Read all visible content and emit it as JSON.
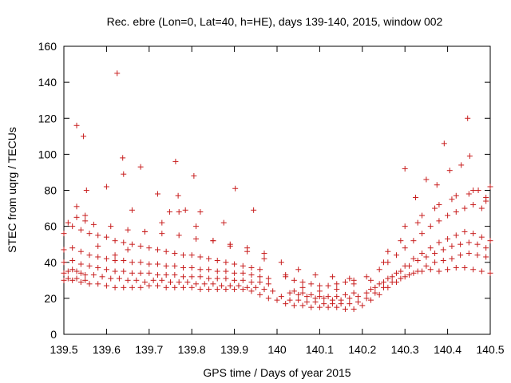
{
  "chart_data": {
    "type": "scatter",
    "title": "Rec. ebre (Lon=0, Lat=40, h=HE), days 139-140, 2015, window 002",
    "xlabel": "GPS time / Days of year 2015",
    "ylabel": "STEC from uqrg / TECUs",
    "xlim": [
      139.5,
      140.5
    ],
    "ylim": [
      0,
      160
    ],
    "xticks": [
      "139.5",
      "139.6",
      "139.7",
      "139.8",
      "139.9",
      "140",
      "140.1",
      "140.2",
      "140.3",
      "140.4",
      "140.5"
    ],
    "yticks": [
      "0",
      "20",
      "40",
      "60",
      "80",
      "100",
      "120",
      "140",
      "160"
    ],
    "grid": false,
    "marker": "+",
    "marker_color": "#c81e1e",
    "series": [
      {
        "x": [
          139.5,
          139.51,
          139.52,
          139.53,
          139.54,
          139.55,
          139.56,
          139.58,
          139.6,
          139.62,
          139.64,
          139.66,
          139.68,
          139.7,
          139.72,
          139.74,
          139.76,
          139.78,
          139.8,
          139.82,
          139.84,
          139.86,
          139.88,
          139.9,
          139.92,
          139.94,
          139.96,
          139.98,
          140,
          140.02,
          140.04,
          140.06,
          140.08,
          140.1,
          140.12,
          140.14,
          140.16,
          140.18,
          140.2,
          140.22,
          140.24,
          140.26,
          140.28,
          140.3,
          140.32,
          140.34,
          140.36,
          140.38,
          140.4,
          140.42,
          140.44,
          140.46,
          140.48,
          140.5
        ],
        "y": [
          30,
          31,
          30,
          31,
          29,
          30,
          28,
          28,
          27,
          26,
          26,
          26,
          26,
          27,
          27,
          26,
          26,
          26,
          26,
          25,
          25,
          25,
          25,
          25,
          25,
          24,
          22,
          20,
          19,
          17,
          16,
          16,
          15,
          15,
          15,
          15,
          14,
          14,
          16,
          19,
          22,
          26,
          29,
          32,
          34,
          35,
          36,
          35,
          36,
          37,
          37,
          36,
          35,
          34
        ]
      },
      {
        "x": [
          139.5,
          139.51,
          139.52,
          139.53,
          139.54,
          139.55,
          139.57,
          139.59,
          139.61,
          139.63,
          139.65,
          139.67,
          139.69,
          139.71,
          139.73,
          139.75,
          139.77,
          139.79,
          139.81,
          139.83,
          139.85,
          139.87,
          139.89,
          139.91,
          139.93,
          139.95,
          139.97,
          139.99,
          140.01,
          140.03,
          140.05,
          140.07,
          140.09,
          140.11,
          140.13,
          140.15,
          140.17,
          140.19,
          140.21,
          140.23,
          140.25,
          140.27,
          140.29,
          140.31,
          140.33,
          140.35,
          140.37,
          140.39,
          140.41,
          140.43,
          140.45,
          140.47,
          140.49
        ],
        "y": [
          34,
          35,
          36,
          35,
          34,
          33,
          33,
          32,
          31,
          31,
          30,
          30,
          29,
          30,
          30,
          29,
          29,
          29,
          28,
          28,
          28,
          27,
          27,
          27,
          26,
          26,
          25,
          24,
          21,
          19,
          19,
          18,
          18,
          17,
          17,
          17,
          17,
          18,
          20,
          23,
          26,
          29,
          31,
          33,
          35,
          38,
          40,
          41,
          42,
          44,
          45,
          44,
          43
        ]
      },
      {
        "x": [
          139.5,
          139.52,
          139.54,
          139.56,
          139.58,
          139.6,
          139.62,
          139.64,
          139.66,
          139.68,
          139.7,
          139.72,
          139.74,
          139.76,
          139.78,
          139.8,
          139.82,
          139.84,
          139.86,
          139.88,
          139.9,
          139.92,
          139.94,
          139.96,
          139.98,
          140.03,
          140.05,
          140.07,
          140.09,
          140.11,
          140.13,
          140.15,
          140.17,
          140.19,
          140.21,
          140.23,
          140.25,
          140.27,
          140.29,
          140.31,
          140.33,
          140.35,
          140.37,
          140.39,
          140.41,
          140.43,
          140.45,
          140.47,
          140.49
        ],
        "y": [
          40,
          41,
          39,
          38,
          37,
          36,
          35,
          35,
          34,
          34,
          34,
          33,
          33,
          33,
          32,
          32,
          32,
          31,
          31,
          31,
          30,
          30,
          29,
          29,
          28,
          23,
          22,
          21,
          20,
          20,
          19,
          19,
          20,
          21,
          23,
          26,
          29,
          32,
          35,
          38,
          41,
          43,
          45,
          47,
          49,
          50,
          51,
          50,
          48
        ]
      },
      {
        "x": [
          139.5,
          139.52,
          139.54,
          139.56,
          139.58,
          139.6,
          139.62,
          139.64,
          139.66,
          139.68,
          139.7,
          139.72,
          139.74,
          139.76,
          139.78,
          139.8,
          139.82,
          139.84,
          139.86,
          139.88,
          139.9,
          139.92,
          139.94,
          139.96,
          139.98,
          140.04,
          140.06,
          140.08,
          140.1,
          140.12,
          140.14,
          140.16,
          140.18,
          140.22,
          140.24,
          140.26,
          140.28,
          140.3,
          140.32,
          140.34,
          140.36,
          140.38,
          140.4,
          140.42,
          140.44,
          140.46,
          140.48,
          140.5
        ],
        "y": [
          47,
          48,
          46,
          44,
          43,
          42,
          41,
          41,
          40,
          40,
          39,
          39,
          38,
          38,
          37,
          37,
          36,
          36,
          35,
          35,
          34,
          34,
          33,
          32,
          31,
          24,
          23,
          22,
          21,
          21,
          21,
          22,
          23,
          25,
          28,
          31,
          34,
          38,
          42,
          45,
          48,
          51,
          53,
          55,
          57,
          56,
          54,
          52
        ]
      },
      {
        "x": [
          139.5,
          139.52,
          139.54,
          139.56,
          139.58,
          139.6,
          139.62,
          139.64,
          139.66,
          139.68,
          139.7,
          139.72,
          139.74,
          139.76,
          139.78,
          139.8,
          139.82,
          139.84,
          139.86,
          139.88,
          139.9,
          139.92,
          139.94,
          139.96,
          140.02,
          140.04,
          140.06,
          140.08,
          140.1,
          140.12,
          140.14,
          140.16,
          140.18,
          140.24,
          140.26,
          140.28,
          140.3,
          140.32,
          140.34,
          140.36,
          140.38,
          140.4,
          140.42,
          140.44,
          140.46,
          140.48
        ],
        "y": [
          56,
          60,
          58,
          56,
          55,
          54,
          52,
          51,
          50,
          49,
          48,
          47,
          46,
          45,
          44,
          44,
          43,
          42,
          41,
          40,
          39,
          38,
          37,
          36,
          32,
          30,
          29,
          28,
          27,
          27,
          28,
          29,
          30,
          36,
          40,
          44,
          48,
          52,
          56,
          60,
          63,
          66,
          68,
          70,
          72,
          70
        ]
      },
      {
        "x": [
          139.53,
          139.55,
          139.57,
          139.61,
          139.65,
          139.69,
          139.73,
          139.77,
          139.81,
          139.85,
          139.89,
          139.93,
          139.97,
          140.01,
          140.05,
          140.09,
          140.13,
          140.17,
          140.21,
          140.25,
          140.29,
          140.33,
          140.37,
          140.41,
          140.45,
          140.49
        ],
        "y": [
          65,
          63,
          61,
          60,
          58,
          57,
          56,
          55,
          53,
          52,
          50,
          48,
          45,
          40,
          36,
          33,
          32,
          31,
          32,
          40,
          52,
          62,
          70,
          75,
          78,
          74
        ]
      },
      {
        "x": [
          139.51,
          139.53,
          139.55,
          139.58,
          139.62,
          139.65,
          139.69,
          139.73,
          139.77,
          139.81,
          139.85,
          139.89,
          139.93,
          140.02,
          140.06,
          140.1,
          140.14,
          140.18,
          140.22,
          140.26,
          140.3,
          140.34,
          140.38,
          140.42,
          140.46,
          140.5
        ],
        "y": [
          62,
          71,
          66,
          49,
          44,
          47,
          57,
          62,
          68,
          60,
          52,
          49,
          46,
          33,
          26,
          24,
          25,
          28,
          30,
          46,
          60,
          66,
          72,
          77,
          80,
          82
        ]
      },
      {
        "x": [
          139.53,
          139.546,
          139.553,
          139.6,
          139.625,
          139.638,
          139.64,
          139.66,
          139.68,
          139.72,
          139.748,
          139.762,
          139.768,
          139.785,
          139.805,
          139.82,
          139.875,
          139.902,
          139.945,
          139.97,
          140.3,
          140.325,
          140.35,
          140.375,
          140.392,
          140.405,
          140.432,
          140.447,
          140.452,
          140.472,
          140.49
        ],
        "y": [
          116,
          110,
          80,
          82,
          145,
          98,
          89,
          69,
          93,
          78,
          68,
          96,
          77,
          69,
          88,
          68,
          62,
          81,
          69,
          42,
          92,
          76,
          86,
          83,
          106,
          91,
          94,
          120,
          99,
          80,
          76
        ]
      }
    ]
  }
}
